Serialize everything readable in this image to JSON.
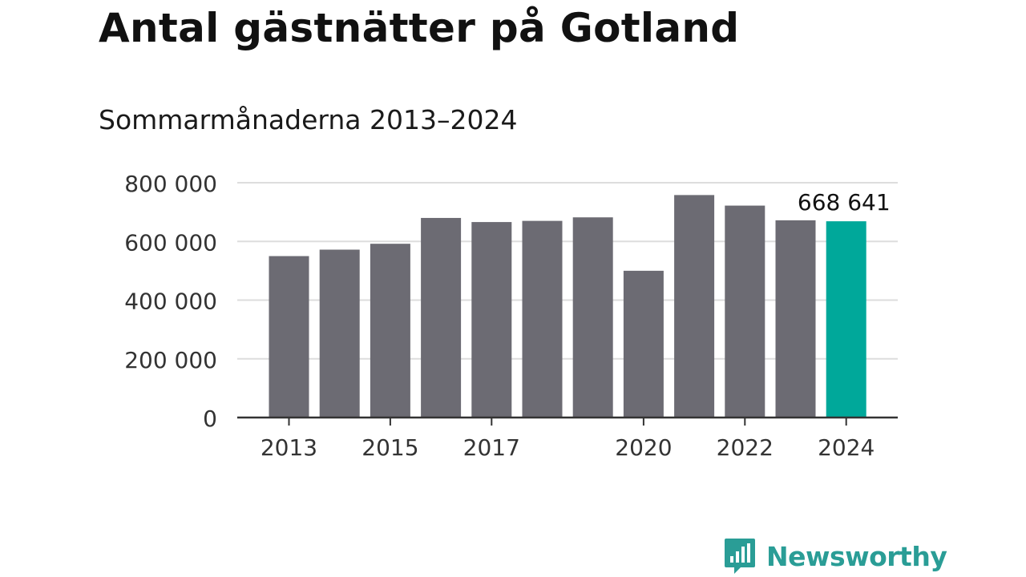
{
  "title": "Antal gästnätter på Gotland",
  "subtitle": "Sommarmånaderna 2013–2024",
  "brand": {
    "name": "Newsworthy",
    "icon": "newsworthy-logo-icon",
    "color": "#2a9d96"
  },
  "chart_data": {
    "type": "bar",
    "categories": [
      "2013",
      "2014",
      "2015",
      "2016",
      "2017",
      "2018",
      "2019",
      "2020",
      "2021",
      "2022",
      "2023",
      "2024"
    ],
    "values": [
      550000,
      572000,
      592000,
      680000,
      666000,
      670000,
      682000,
      500000,
      758000,
      722000,
      672000,
      668641
    ],
    "x_tick_labels": [
      "2013",
      "2015",
      "2017",
      "2020",
      "2022",
      "2024"
    ],
    "y_ticks": [
      0,
      200000,
      400000,
      600000,
      800000
    ],
    "y_tick_labels": [
      "0",
      "200 000",
      "400 000",
      "600 000",
      "800 000"
    ],
    "ylim": [
      0,
      800000
    ],
    "grid": true,
    "bar_color": "#6c6b73",
    "highlight_color": "#00a89a",
    "highlight_index": 11,
    "annotation": {
      "index": 11,
      "text": "668 641"
    }
  }
}
